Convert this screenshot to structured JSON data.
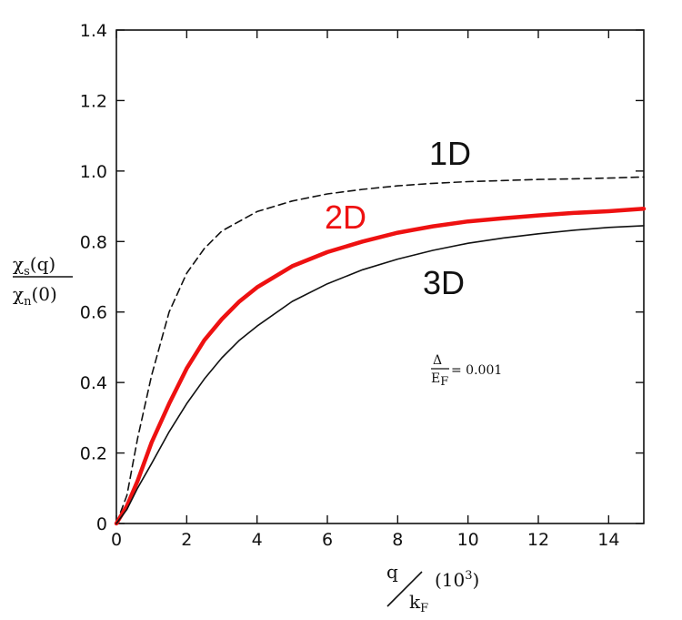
{
  "chart_data": {
    "type": "line",
    "xlim": [
      0,
      15
    ],
    "ylim": [
      0,
      1.4
    ],
    "xticks": [
      0,
      2,
      4,
      6,
      8,
      10,
      12,
      14
    ],
    "xtick_labels": [
      "0",
      "2",
      "4",
      "6",
      "8",
      "10",
      "12",
      "14"
    ],
    "yticks": [
      0,
      0.2,
      0.4,
      0.6,
      0.8,
      1.0,
      1.2,
      1.4
    ],
    "ytick_labels": [
      "0",
      "0.2",
      "0.4",
      "0.6",
      "0.8",
      "1.0",
      "1.2",
      "1.4"
    ],
    "ylabel": {
      "num_main": "χ",
      "num_sub": "s",
      "num_tail": "(q)",
      "den_main": "χ",
      "den_sub": "n",
      "den_tail": "(0)"
    },
    "xlabel": {
      "num": "q",
      "den_main": "k",
      "den_sub": "F",
      "tail": "(10",
      "sup": "3",
      "close": ")"
    },
    "annotation": {
      "num": "Δ",
      "den_main": "E",
      "den_sub": "F",
      "value": "= 0.001"
    },
    "grid": false,
    "series": [
      {
        "name": "1D",
        "style": "dashed",
        "color": "#111111",
        "x": [
          0,
          0.3,
          0.6,
          1.0,
          1.5,
          2.0,
          2.5,
          3.0,
          4.0,
          5.0,
          6.0,
          7.0,
          8.0,
          9.0,
          10.0,
          11.0,
          12.0,
          13.0,
          14.0,
          15.0
        ],
        "y": [
          0,
          0.08,
          0.24,
          0.42,
          0.6,
          0.71,
          0.78,
          0.83,
          0.885,
          0.915,
          0.935,
          0.948,
          0.958,
          0.965,
          0.97,
          0.973,
          0.976,
          0.978,
          0.98,
          0.983
        ]
      },
      {
        "name": "2D",
        "style": "solid",
        "color": "#ee1111",
        "x": [
          0,
          0.3,
          0.6,
          1.0,
          1.5,
          2.0,
          2.5,
          3.0,
          3.5,
          4.0,
          5.0,
          6.0,
          7.0,
          8.0,
          9.0,
          10.0,
          11.0,
          12.0,
          13.0,
          14.0,
          15.0
        ],
        "y": [
          0,
          0.05,
          0.12,
          0.23,
          0.34,
          0.44,
          0.52,
          0.58,
          0.63,
          0.67,
          0.73,
          0.77,
          0.8,
          0.825,
          0.843,
          0.857,
          0.866,
          0.874,
          0.881,
          0.886,
          0.893
        ]
      },
      {
        "name": "3D",
        "style": "solid",
        "color": "#111111",
        "x": [
          0,
          0.3,
          0.6,
          1.0,
          1.5,
          2.0,
          2.5,
          3.0,
          3.5,
          4.0,
          5.0,
          6.0,
          7.0,
          8.0,
          9.0,
          10.0,
          11.0,
          12.0,
          13.0,
          14.0,
          15.0
        ],
        "y": [
          0,
          0.04,
          0.1,
          0.17,
          0.26,
          0.34,
          0.41,
          0.47,
          0.52,
          0.56,
          0.63,
          0.68,
          0.72,
          0.75,
          0.775,
          0.795,
          0.81,
          0.822,
          0.832,
          0.84,
          0.845
        ]
      }
    ]
  }
}
